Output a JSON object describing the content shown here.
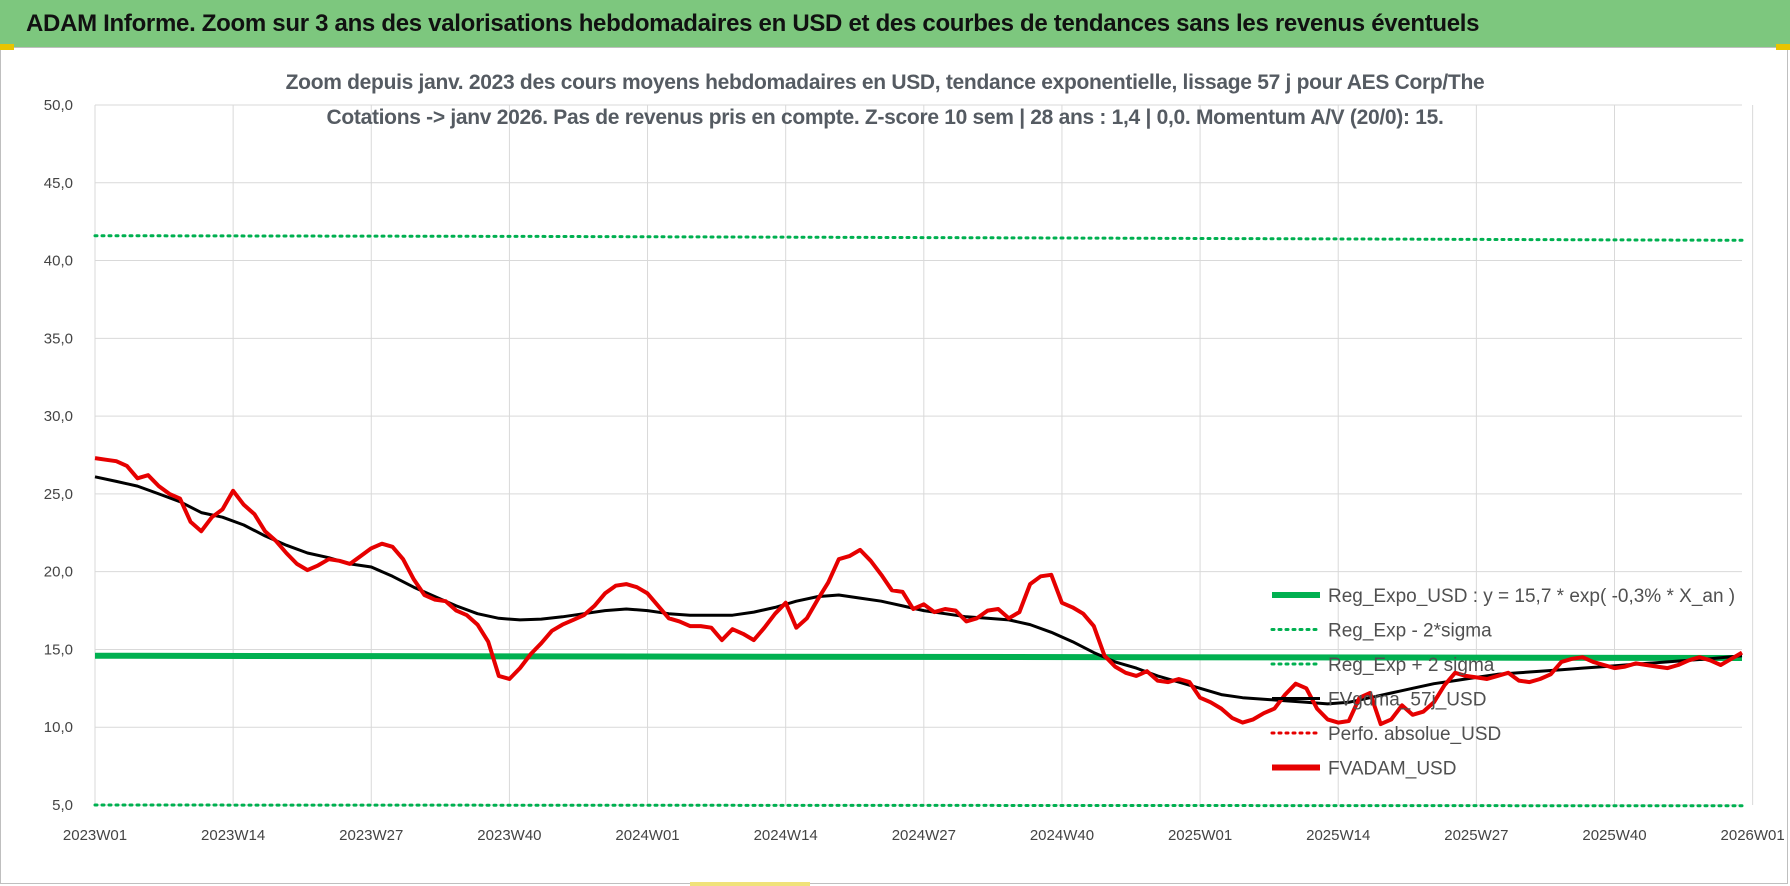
{
  "banner": {
    "title": "ADAM Informe. Zoom sur 3 ans des valorisations hebdomadaires en USD et des courbes de tendances sans les revenus éventuels"
  },
  "colors": {
    "banner_bg": "#7dc77e",
    "reg_expo": "#00b050",
    "fvadam": "#e60000",
    "fvgdma": "#000000",
    "perfo": "#e60000",
    "grid": "#d9d9d9"
  },
  "chart_data": {
    "type": "line",
    "title_line1": "Zoom depuis janv. 2023 des cours moyens hebdomadaires en USD, tendance exponentielle, lissage 57 j pour AES Corp/The",
    "title_line2": "Cotations -> janv 2026. Pas de revenus pris en compte. Z-score 10 sem | 28 ans : 1,4 | 0,0. Momentum A/V (20/0): 15.",
    "ylim": [
      5,
      50
    ],
    "yticks": [
      "5,0",
      "10,0",
      "15,0",
      "20,0",
      "25,0",
      "30,0",
      "35,0",
      "40,0",
      "45,0",
      "50,0"
    ],
    "xticks": [
      "2023W01",
      "2023W14",
      "2023W27",
      "2023W40",
      "2024W01",
      "2024W14",
      "2024W27",
      "2024W40",
      "2025W01",
      "2025W14",
      "2025W27",
      "2025W40",
      "2026W01"
    ],
    "grid": true,
    "legend_position": "right",
    "legend": [
      {
        "label": "Reg_Expo_USD : y = 15,7 * exp( -0,3% *  X_an )",
        "style": "thick-solid",
        "color": "#00b050"
      },
      {
        "label": "Reg_Exp - 2*sigma",
        "style": "dotted",
        "color": "#00b050"
      },
      {
        "label": "Reg_Exp + 2 sigma",
        "style": "dotted",
        "color": "#00b050"
      },
      {
        "label": "FVgdma_57j_USD",
        "style": "solid",
        "color": "#000000"
      },
      {
        "label": "Perfo. absolue_USD",
        "style": "dotted",
        "color": "#e60000"
      },
      {
        "label": "FVADAM_USD",
        "style": "thick-solid",
        "color": "#e60000"
      }
    ],
    "series": [
      {
        "name": "Reg_Expo_USD : y = 15,7 * exp( -0,3% *  X_an )",
        "x": [
          0,
          41,
          155
        ],
        "values": [
          14.6,
          14.55,
          14.45
        ]
      },
      {
        "name": "Reg_Exp - 2*sigma",
        "x": [
          0,
          155
        ],
        "values": [
          5.0,
          4.95
        ]
      },
      {
        "name": "Reg_Exp + 2 sigma",
        "x": [
          0,
          41,
          91,
          155
        ],
        "values": [
          41.6,
          41.55,
          41.45,
          41.3
        ]
      },
      {
        "name": "FVgdma_57j_USD",
        "x": [
          0,
          2,
          4,
          6,
          8,
          10,
          12,
          14,
          16,
          18,
          20,
          22,
          24,
          26,
          28,
          30,
          32,
          34,
          36,
          38,
          40,
          42,
          44,
          46,
          48,
          50,
          52,
          54,
          56,
          58,
          60,
          62,
          64,
          66,
          68,
          70,
          72,
          74,
          76,
          78,
          80,
          82,
          84,
          86,
          88,
          90,
          92,
          94,
          96,
          98,
          100,
          102,
          104,
          106,
          108,
          110,
          112,
          114,
          116,
          118,
          120,
          122,
          124,
          126,
          128,
          130,
          132,
          134,
          136,
          138,
          140,
          142,
          144,
          146,
          148,
          150,
          152,
          155
        ],
        "values": [
          26.1,
          25.8,
          25.5,
          25.0,
          24.5,
          23.8,
          23.5,
          23.0,
          22.3,
          21.7,
          21.2,
          20.9,
          20.5,
          20.3,
          19.7,
          19.0,
          18.4,
          17.8,
          17.3,
          17.0,
          16.9,
          16.95,
          17.1,
          17.3,
          17.5,
          17.6,
          17.5,
          17.3,
          17.2,
          17.2,
          17.2,
          17.4,
          17.7,
          18.1,
          18.4,
          18.5,
          18.3,
          18.1,
          17.8,
          17.5,
          17.3,
          17.1,
          17.0,
          16.9,
          16.6,
          16.1,
          15.5,
          14.8,
          14.2,
          13.8,
          13.3,
          12.9,
          12.5,
          12.1,
          11.9,
          11.8,
          11.7,
          11.6,
          11.5,
          11.6,
          11.9,
          12.2,
          12.5,
          12.8,
          13.0,
          13.2,
          13.4,
          13.5,
          13.6,
          13.7,
          13.8,
          13.9,
          14.0,
          14.1,
          14.2,
          14.3,
          14.4,
          14.6
        ]
      },
      {
        "name": "FVADAM_USD",
        "x": [
          0,
          1,
          2,
          3,
          4,
          5,
          6,
          7,
          8,
          9,
          10,
          11,
          12,
          13,
          14,
          15,
          16,
          17,
          18,
          19,
          20,
          21,
          22,
          23,
          24,
          25,
          26,
          27,
          28,
          29,
          30,
          31,
          32,
          33,
          34,
          35,
          36,
          37,
          38,
          39,
          40,
          41,
          42,
          43,
          44,
          45,
          46,
          47,
          48,
          49,
          50,
          51,
          52,
          53,
          54,
          55,
          56,
          57,
          58,
          59,
          60,
          61,
          62,
          63,
          64,
          65,
          66,
          67,
          68,
          69,
          70,
          71,
          72,
          73,
          74,
          75,
          76,
          77,
          78,
          79,
          80,
          81,
          82,
          83,
          84,
          85,
          86,
          87,
          88,
          89,
          90,
          91,
          92,
          93,
          94,
          95,
          96,
          97,
          98,
          99,
          100,
          101,
          102,
          103,
          104,
          105,
          106,
          107,
          108,
          109,
          110,
          111,
          112,
          113,
          114,
          115,
          116,
          117,
          118,
          119,
          120,
          121,
          122,
          123,
          124,
          125,
          126,
          127,
          128,
          129,
          130,
          131,
          132,
          133,
          134,
          135,
          136,
          137,
          138,
          139,
          140,
          141,
          142,
          143,
          144,
          145,
          146,
          147,
          148,
          149,
          150,
          151,
          152,
          153,
          154,
          155
        ],
        "values": [
          27.3,
          27.2,
          27.1,
          26.8,
          26.0,
          26.2,
          25.5,
          25.0,
          24.7,
          23.2,
          22.6,
          23.5,
          24.0,
          25.2,
          24.3,
          23.7,
          22.6,
          22.0,
          21.2,
          20.5,
          20.1,
          20.4,
          20.8,
          20.7,
          20.5,
          21.0,
          21.5,
          21.8,
          21.6,
          20.8,
          19.5,
          18.5,
          18.2,
          18.1,
          17.5,
          17.2,
          16.6,
          15.5,
          13.3,
          13.1,
          13.8,
          14.7,
          15.4,
          16.2,
          16.6,
          16.9,
          17.2,
          17.8,
          18.6,
          19.1,
          19.2,
          19.0,
          18.6,
          17.8,
          17.0,
          16.8,
          16.5,
          16.5,
          16.4,
          15.6,
          16.3,
          16.0,
          15.6,
          16.4,
          17.3,
          18.0,
          16.4,
          17.0,
          18.2,
          19.3,
          20.8,
          21.0,
          21.4,
          20.7,
          19.8,
          18.8,
          18.7,
          17.6,
          17.9,
          17.4,
          17.6,
          17.5,
          16.8,
          17.0,
          17.5,
          17.6,
          17.0,
          17.4,
          19.2,
          19.7,
          19.8,
          18.0,
          17.7,
          17.3,
          16.5,
          14.6,
          13.9,
          13.5,
          13.3,
          13.6,
          13.0,
          12.9,
          13.1,
          12.9,
          11.9,
          11.6,
          11.2,
          10.6,
          10.3,
          10.5,
          10.9,
          11.2,
          12.1,
          12.8,
          12.5,
          11.2,
          10.5,
          10.3,
          10.4,
          11.9,
          12.2,
          10.2,
          10.5,
          11.4,
          10.8,
          11.0,
          11.6,
          12.7,
          13.5,
          13.3,
          13.2,
          13.1,
          13.3,
          13.5,
          13.0,
          12.9,
          13.1,
          13.4,
          14.2,
          14.4,
          14.5,
          14.2,
          14.0,
          13.8,
          13.9,
          14.1,
          14.0,
          13.9,
          13.8,
          14.0,
          14.3,
          14.5,
          14.3,
          14.0,
          14.4,
          14.8
        ]
      }
    ]
  }
}
